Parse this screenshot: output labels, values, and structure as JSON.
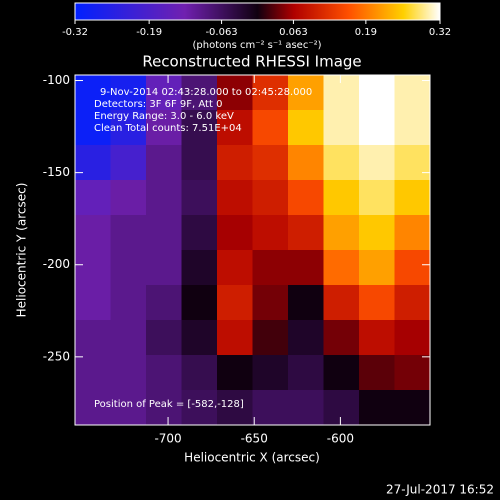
{
  "chart_data": {
    "type": "heatmap",
    "title": "Reconstructed RHESSI Image",
    "colorbar_label": "(photons cm⁻² s⁻¹ asec⁻²)",
    "zlim": [
      -0.32,
      0.32
    ],
    "zticks": [
      -0.32,
      -0.19,
      -0.063,
      0.063,
      0.19,
      0.32
    ],
    "x_label": "Heliocentric X (arcsec)",
    "y_label": "Heliocentric Y (arcsec)",
    "xlim": [
      -754,
      -548
    ],
    "xticks": [
      -700,
      -650,
      -600
    ],
    "ylim": [
      -287,
      -97
    ],
    "yticks": [
      -100,
      -150,
      -200,
      -250
    ],
    "annotations": [
      "9-Nov-2014 02:43:28.000 to 02:45:28.000",
      "Detectors: 3F 6F 9F, Att 0",
      "Energy Range: 3.0 - 6.0 keV",
      "Clean     Total counts: 7.51E+04"
    ],
    "peak_label": "Position of Peak = [-582,-128]",
    "timestamp": "27-Jul-2017 16:52",
    "z": [
      [
        -0.3,
        -0.28,
        -0.15,
        -0.08,
        0.05,
        0.12,
        0.22,
        0.3,
        0.32,
        0.3
      ],
      [
        -0.3,
        -0.25,
        -0.12,
        -0.05,
        0.08,
        0.15,
        0.25,
        0.3,
        0.32,
        0.3
      ],
      [
        -0.25,
        -0.2,
        -0.1,
        -0.05,
        0.1,
        0.12,
        0.2,
        0.28,
        0.3,
        0.28
      ],
      [
        -0.15,
        -0.12,
        -0.1,
        -0.06,
        0.08,
        0.1,
        0.15,
        0.25,
        0.28,
        0.25
      ],
      [
        -0.12,
        -0.1,
        -0.1,
        -0.04,
        0.06,
        0.08,
        0.1,
        0.22,
        0.25,
        0.2
      ],
      [
        -0.12,
        -0.1,
        -0.1,
        -0.02,
        0.08,
        0.05,
        0.05,
        0.18,
        0.22,
        0.15
      ],
      [
        -0.12,
        -0.1,
        -0.08,
        0.0,
        0.1,
        0.04,
        0.0,
        0.1,
        0.15,
        0.1
      ],
      [
        -0.1,
        -0.1,
        -0.06,
        -0.02,
        0.08,
        0.02,
        -0.02,
        0.04,
        0.08,
        0.06
      ],
      [
        -0.1,
        -0.1,
        -0.08,
        -0.05,
        0.0,
        -0.02,
        -0.04,
        0.0,
        0.03,
        0.04
      ],
      [
        -0.1,
        -0.1,
        -0.08,
        -0.06,
        -0.04,
        -0.06,
        -0.06,
        -0.04,
        0.0,
        0.0
      ]
    ]
  }
}
